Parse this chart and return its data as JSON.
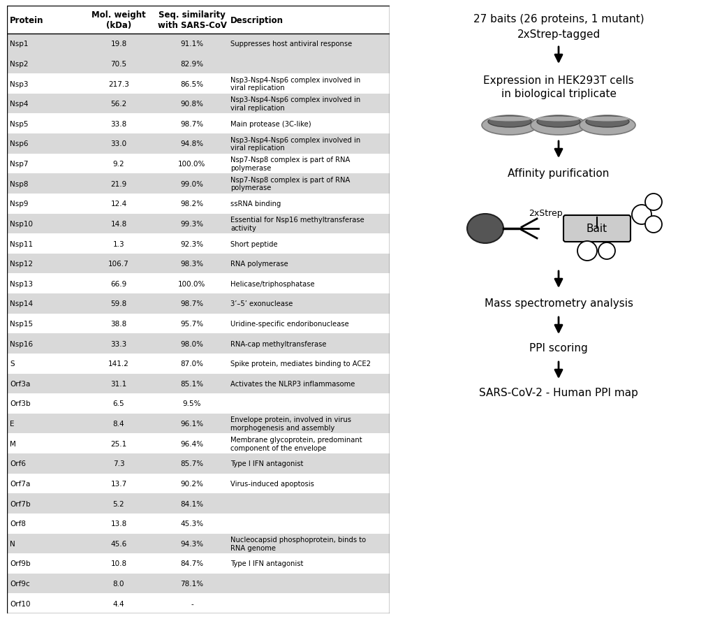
{
  "table_data": [
    {
      "protein": "Nsp1",
      "mol_weight": "19.8",
      "seq_sim": "91.1%",
      "description": "Suppresses host antiviral response",
      "shaded": true
    },
    {
      "protein": "Nsp2",
      "mol_weight": "70.5",
      "seq_sim": "82.9%",
      "description": "",
      "shaded": true
    },
    {
      "protein": "Nsp3",
      "mol_weight": "217.3",
      "seq_sim": "86.5%",
      "description": "Nsp3-Nsp4-Nsp6 complex involved in\nviral replication",
      "shaded": false
    },
    {
      "protein": "Nsp4",
      "mol_weight": "56.2",
      "seq_sim": "90.8%",
      "description": "Nsp3-Nsp4-Nsp6 complex involved in\nviral replication",
      "shaded": true
    },
    {
      "protein": "Nsp5",
      "mol_weight": "33.8",
      "seq_sim": "98.7%",
      "description": "Main protease (3C-like)",
      "shaded": false
    },
    {
      "protein": "Nsp6",
      "mol_weight": "33.0",
      "seq_sim": "94.8%",
      "description": "Nsp3-Nsp4-Nsp6 complex involved in\nviral replication",
      "shaded": true
    },
    {
      "protein": "Nsp7",
      "mol_weight": "9.2",
      "seq_sim": "100.0%",
      "description": "Nsp7-Nsp8 complex is part of RNA\npolymerase",
      "shaded": false
    },
    {
      "protein": "Nsp8",
      "mol_weight": "21.9",
      "seq_sim": "99.0%",
      "description": "Nsp7-Nsp8 complex is part of RNA\npolymerase",
      "shaded": true
    },
    {
      "protein": "Nsp9",
      "mol_weight": "12.4",
      "seq_sim": "98.2%",
      "description": "ssRNA binding",
      "shaded": false
    },
    {
      "protein": "Nsp10",
      "mol_weight": "14.8",
      "seq_sim": "99.3%",
      "description": "Essential for Nsp16 methyltransferase\nactivity",
      "shaded": true
    },
    {
      "protein": "Nsp11",
      "mol_weight": "1.3",
      "seq_sim": "92.3%",
      "description": "Short peptide",
      "shaded": false
    },
    {
      "protein": "Nsp12",
      "mol_weight": "106.7",
      "seq_sim": "98.3%",
      "description": "RNA polymerase",
      "shaded": true
    },
    {
      "protein": "Nsp13",
      "mol_weight": "66.9",
      "seq_sim": "100.0%",
      "description": "Helicase/triphosphatase",
      "shaded": false
    },
    {
      "protein": "Nsp14",
      "mol_weight": "59.8",
      "seq_sim": "98.7%",
      "description": "3’–5’ exonuclease",
      "shaded": true
    },
    {
      "protein": "Nsp15",
      "mol_weight": "38.8",
      "seq_sim": "95.7%",
      "description": "Uridine-specific endoribonuclease",
      "shaded": false
    },
    {
      "protein": "Nsp16",
      "mol_weight": "33.3",
      "seq_sim": "98.0%",
      "description": "RNA-cap methyltransferase",
      "shaded": true
    },
    {
      "protein": "S",
      "mol_weight": "141.2",
      "seq_sim": "87.0%",
      "description": "Spike protein, mediates binding to ACE2",
      "shaded": false
    },
    {
      "protein": "Orf3a",
      "mol_weight": "31.1",
      "seq_sim": "85.1%",
      "description": "Activates the NLRP3 inflammasome",
      "shaded": true
    },
    {
      "protein": "Orf3b",
      "mol_weight": "6.5",
      "seq_sim": "9.5%",
      "description": "",
      "shaded": false
    },
    {
      "protein": "E",
      "mol_weight": "8.4",
      "seq_sim": "96.1%",
      "description": "Envelope protein, involved in virus\nmorphogenesis and assembly",
      "shaded": true
    },
    {
      "protein": "M",
      "mol_weight": "25.1",
      "seq_sim": "96.4%",
      "description": "Membrane glycoprotein, predominant\ncomponent of the envelope",
      "shaded": false
    },
    {
      "protein": "Orf6",
      "mol_weight": "7.3",
      "seq_sim": "85.7%",
      "description": "Type I IFN antagonist",
      "shaded": true
    },
    {
      "protein": "Orf7a",
      "mol_weight": "13.7",
      "seq_sim": "90.2%",
      "description": "Virus-induced apoptosis",
      "shaded": false
    },
    {
      "protein": "Orf7b",
      "mol_weight": "5.2",
      "seq_sim": "84.1%",
      "description": "",
      "shaded": true
    },
    {
      "protein": "Orf8",
      "mol_weight": "13.8",
      "seq_sim": "45.3%",
      "description": "",
      "shaded": false
    },
    {
      "protein": "N",
      "mol_weight": "45.6",
      "seq_sim": "94.3%",
      "description": "Nucleocapsid phosphoprotein, binds to\nRNA genome",
      "shaded": true
    },
    {
      "protein": "Orf9b",
      "mol_weight": "10.8",
      "seq_sim": "84.7%",
      "description": "Type I IFN antagonist",
      "shaded": false
    },
    {
      "protein": "Orf9c",
      "mol_weight": "8.0",
      "seq_sim": "78.1%",
      "description": "",
      "shaded": true
    },
    {
      "protein": "Orf10",
      "mol_weight": "4.4",
      "seq_sim": "-",
      "description": "",
      "shaded": false
    }
  ],
  "shaded_color": "#d9d9d9",
  "white_color": "#ffffff",
  "flow_title1": "27 baits (26 proteins, 1 mutant)",
  "flow_title2": "2xStrep-tagged",
  "flow_step1a": "Expression in HEK293T cells",
  "flow_step1b": "in biological triplicate",
  "flow_step2": "Affinity purification",
  "flow_step3": "Mass spectrometry analysis",
  "flow_step4": "PPI scoring",
  "flow_step5": "SARS-CoV-2 - Human PPI map",
  "flow_label_2xStrep": "2xStrep",
  "flow_label_Bait": "Bait"
}
